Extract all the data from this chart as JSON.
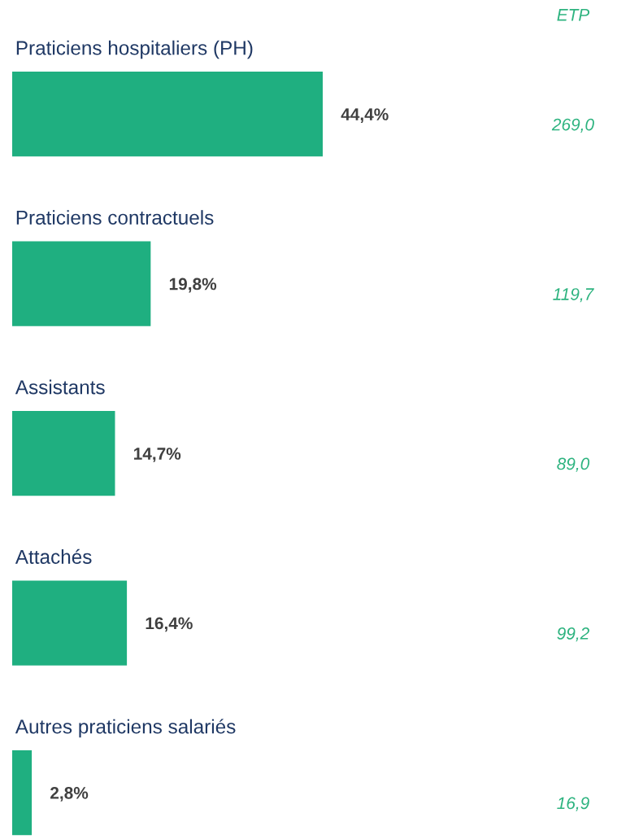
{
  "chart_data": {
    "type": "bar",
    "orientation": "horizontal",
    "categories": [
      "Praticiens hospitaliers (PH)",
      "Praticiens contractuels",
      "Assistants",
      "Attachés",
      "Autres praticiens salariés"
    ],
    "values": [
      44.4,
      19.8,
      14.7,
      16.4,
      2.8
    ],
    "value_labels": [
      "44,4%",
      "19,8%",
      "14,7%",
      "16,4%",
      "2,8%"
    ],
    "color": "#1faf80",
    "annotations": [
      "ETP",
      "269,0",
      "119,7",
      "89,0",
      "99,2",
      "16,9"
    ]
  }
}
